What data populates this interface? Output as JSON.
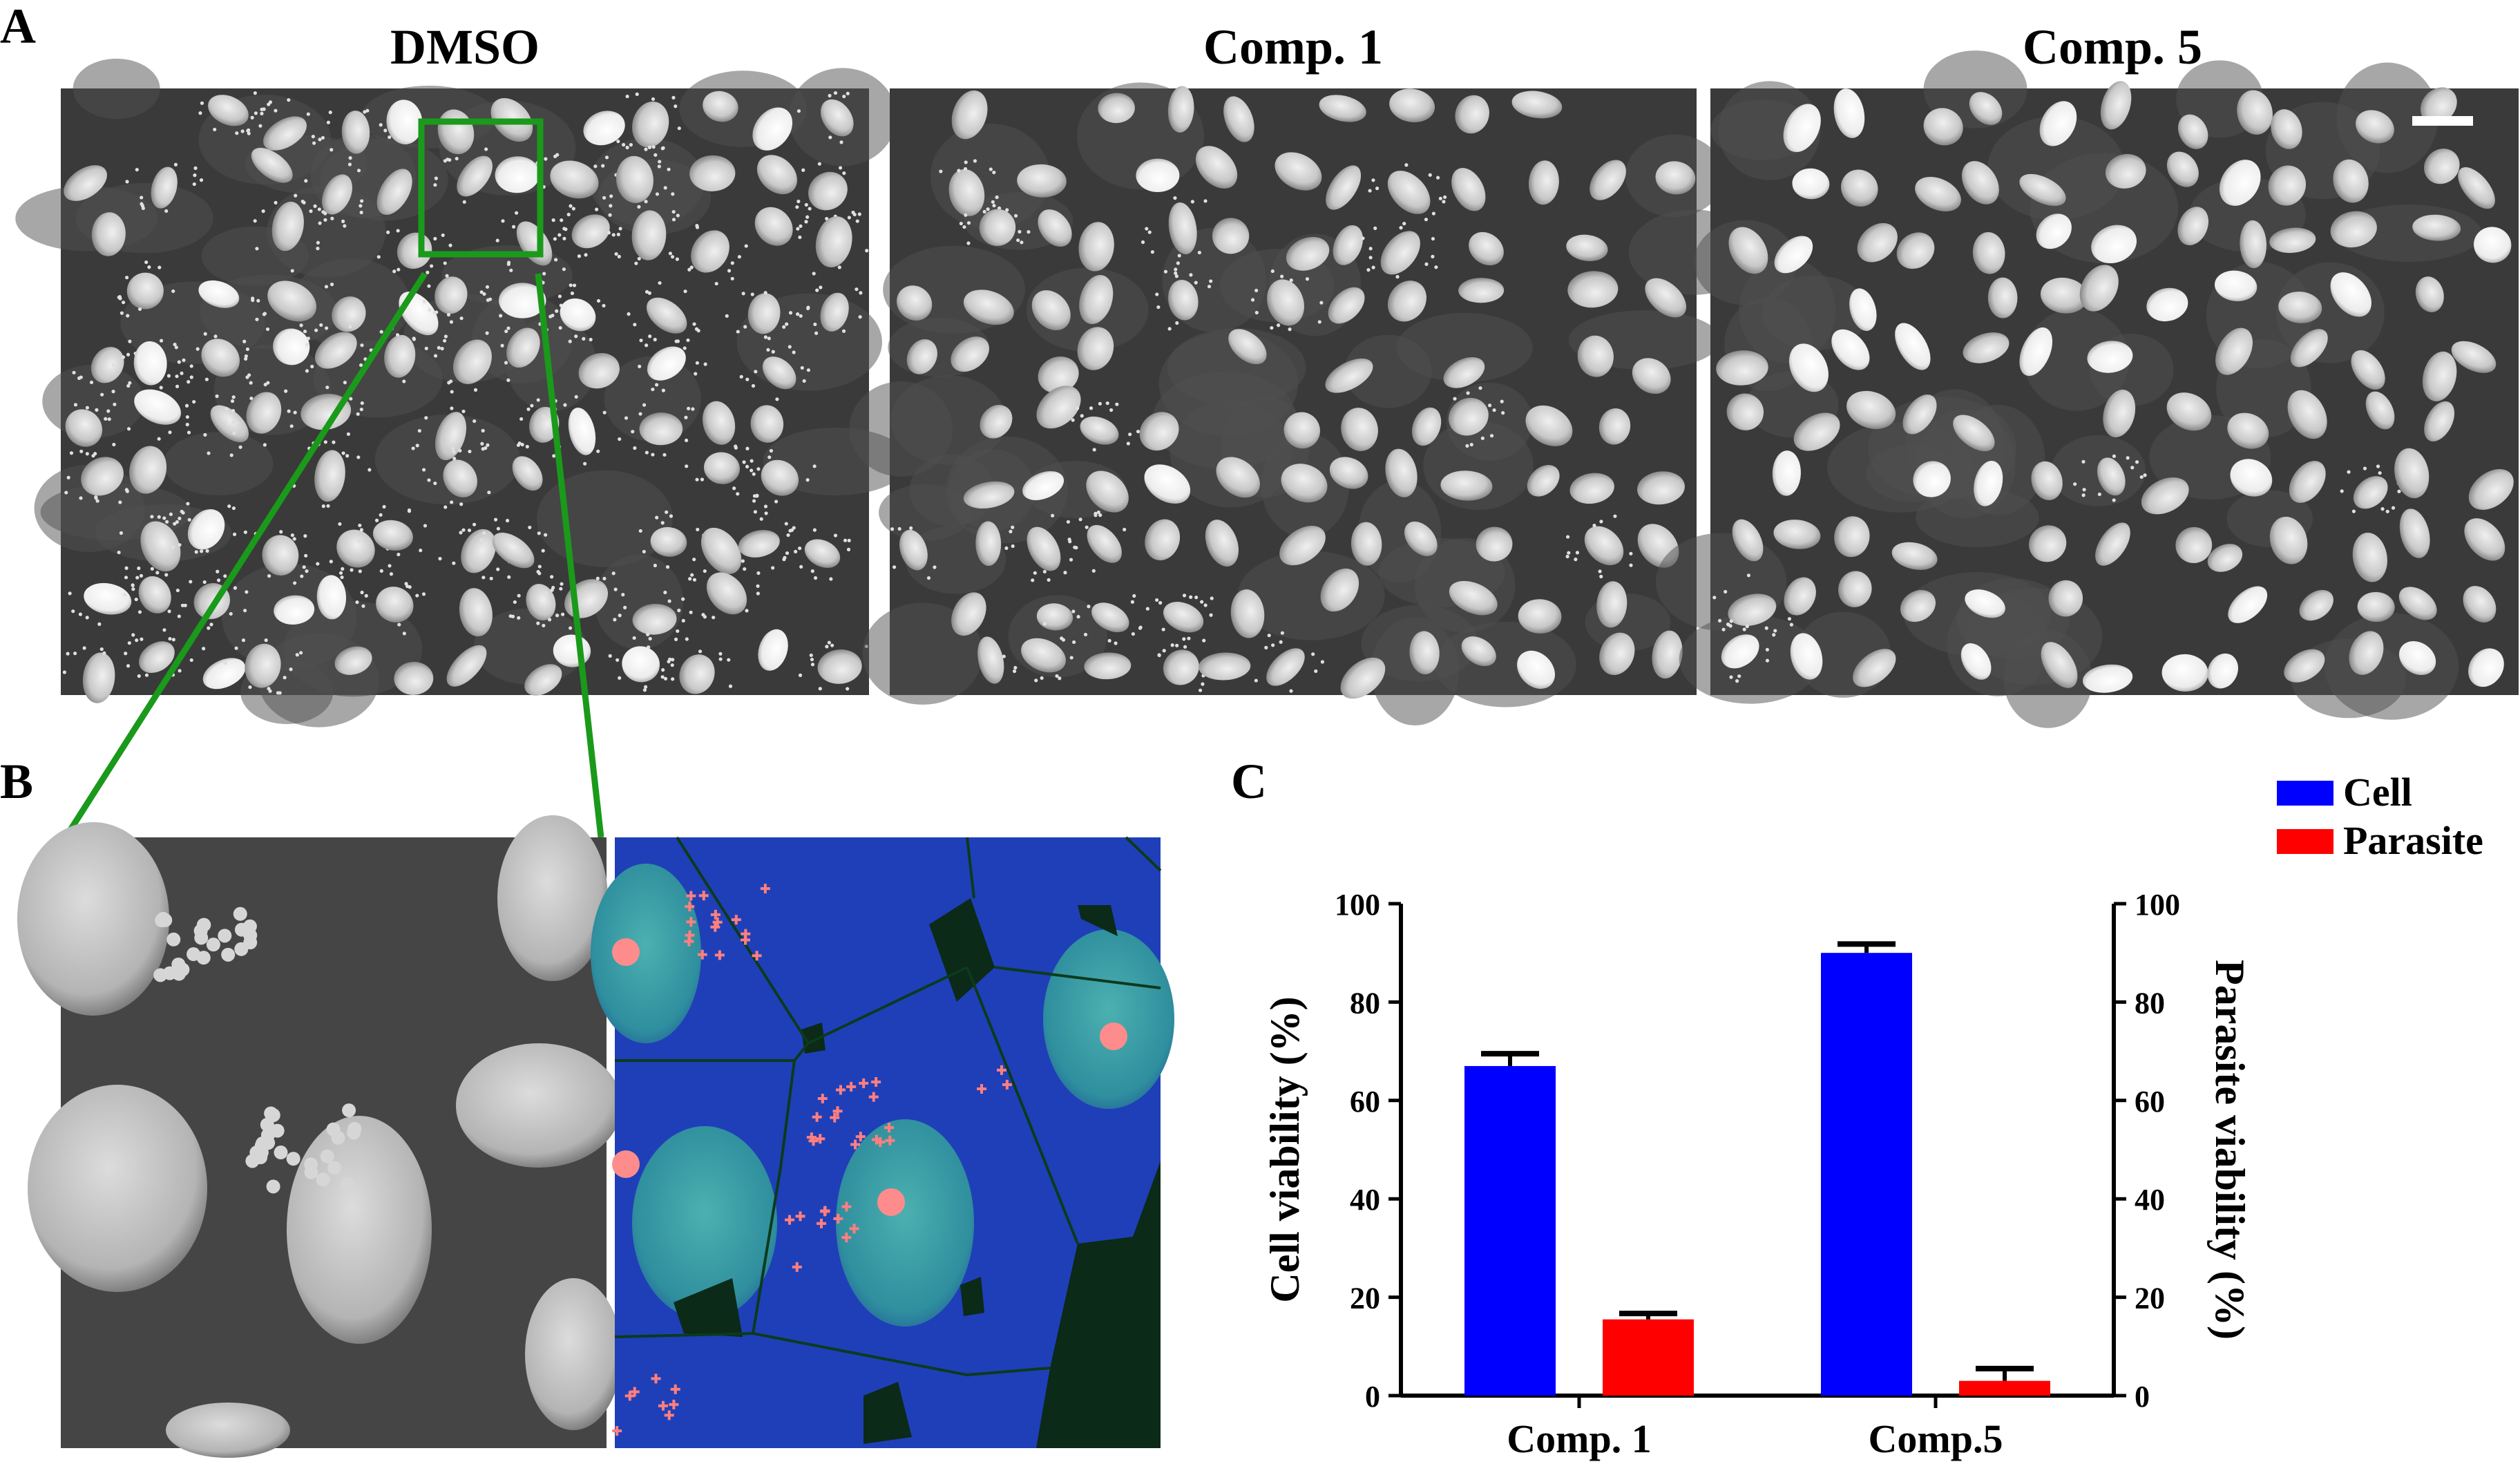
{
  "panels": {
    "a_label": "A",
    "b_label": "B",
    "c_label": "C",
    "image_titles": [
      "DMSO",
      "Comp. 1",
      "Comp. 5"
    ]
  },
  "chart_data": {
    "type": "bar",
    "categories": [
      "Comp. 1",
      "Comp.5"
    ],
    "series": [
      {
        "name": "Cell",
        "color": "#0000ff",
        "values": [
          67,
          90
        ],
        "errors": [
          2.5,
          1.8
        ],
        "axis": "left"
      },
      {
        "name": "Parasite",
        "color": "#ff0000",
        "values": [
          15.5,
          3
        ],
        "errors": [
          1.2,
          2.5
        ],
        "axis": "right"
      }
    ],
    "ylabel": "Cell viability (%)",
    "ylabel_right": "Parasite viability  (%)",
    "ylim": [
      0,
      100
    ],
    "yticks": [
      0,
      20,
      40,
      60,
      80,
      100
    ],
    "legend": "top-right",
    "grid": false
  },
  "colors": {
    "zoom_box": "#1a9a1a",
    "cell": "#0000ff",
    "parasite": "#ff0000",
    "segmentation_bg": "#1f3fb8",
    "parasite_marker": "#ff7f7f"
  }
}
